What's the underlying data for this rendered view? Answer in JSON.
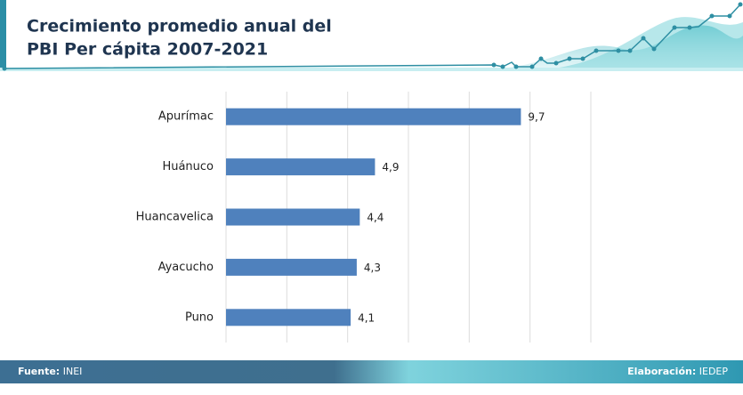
{
  "chart_data": {
    "type": "bar",
    "orientation": "horizontal",
    "title": [
      "Crecimiento promedio anual del",
      "PBI Per cápita 2007-2021"
    ],
    "categories": [
      "Apurímac",
      "Huánuco",
      "Huancavelica",
      "Ayacucho",
      "Puno"
    ],
    "values": [
      9.7,
      4.9,
      4.4,
      4.3,
      4.1
    ],
    "value_labels": [
      "9,7",
      "4,9",
      "4,4",
      "4,3",
      "4,1"
    ],
    "color": "#4f81bd",
    "xlim": [
      0,
      12
    ],
    "xticks": [
      0,
      2,
      4,
      6,
      8,
      10,
      12
    ],
    "grid": true,
    "source_label": "Fuente:",
    "source": "INEI",
    "credit_label": "Elaboración:",
    "credit": "IEDEP"
  }
}
